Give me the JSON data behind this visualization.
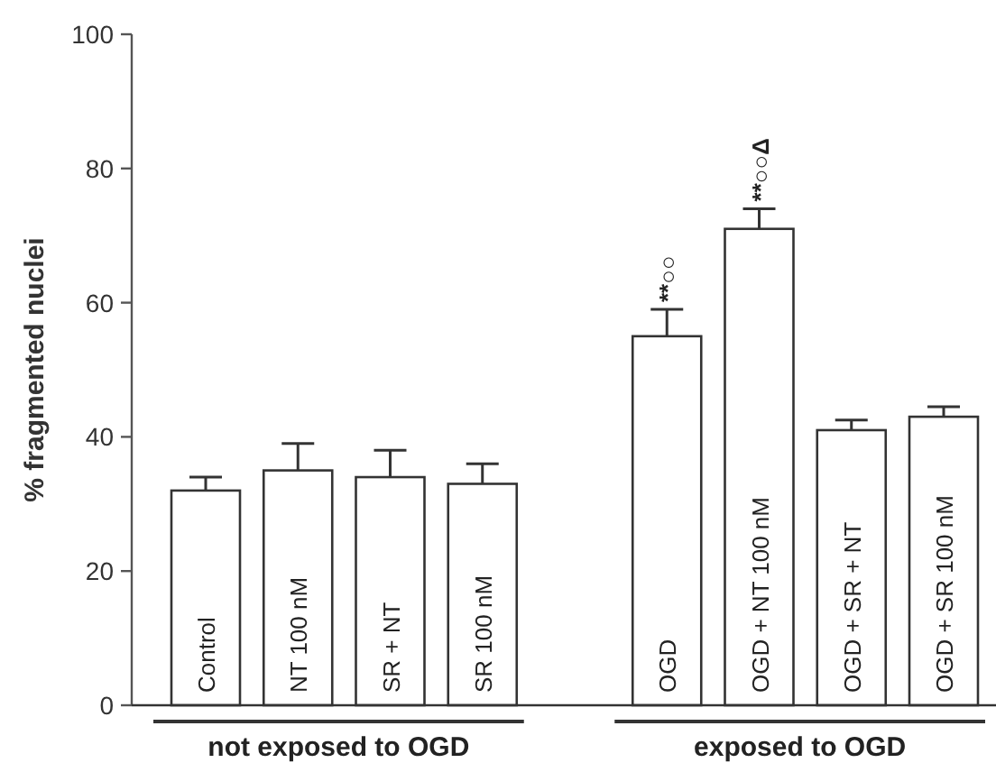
{
  "chart_data": {
    "type": "bar",
    "ylabel": "% fragmented nuclei",
    "categories": [
      "Control",
      "NT 100 nM",
      "SR + NT",
      "SR 100 nM",
      null,
      "OGD",
      "OGD + NT 100 nM",
      "OGD + SR + NT",
      "OGD + SR 100 nM"
    ],
    "values": [
      32,
      35,
      34,
      33,
      null,
      55,
      71,
      41,
      43
    ],
    "errors": [
      2,
      4,
      4,
      3,
      null,
      4,
      3,
      1.5,
      1.5
    ],
    "color": "#ffffff",
    "ylim": [
      0,
      100
    ],
    "yticks": [
      0,
      20,
      40,
      60,
      80,
      100
    ],
    "annotations": [
      "not exposed to OGD",
      "exposed to OGD",
      {
        "text": "**○○",
        "x": "OGD",
        "y": 59
      },
      {
        "text": "**○○Δ",
        "x": "OGD + NT 100 nM",
        "y": 74
      }
    ]
  }
}
